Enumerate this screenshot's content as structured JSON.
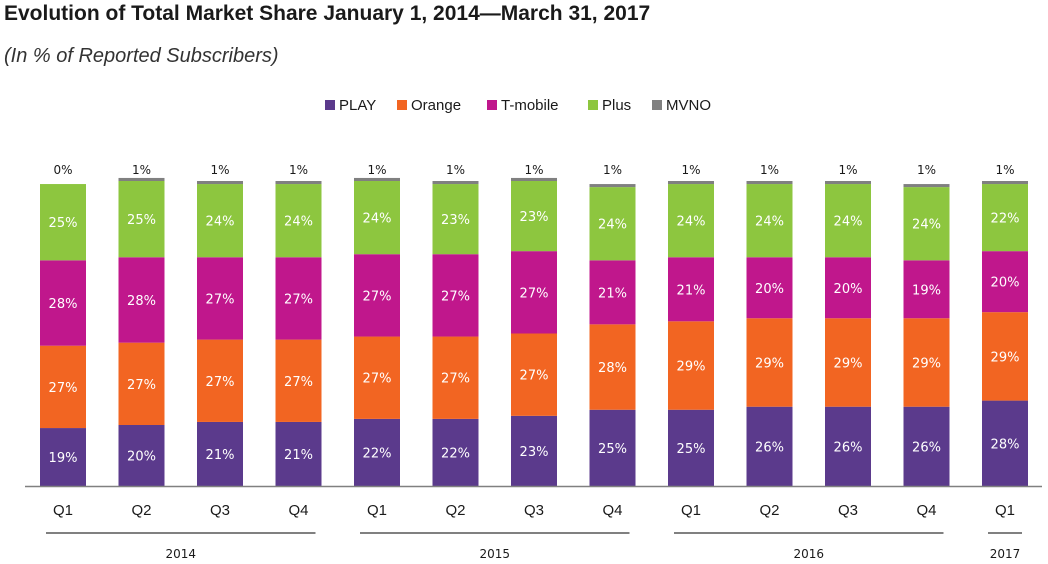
{
  "chart_data": {
    "type": "bar",
    "stacked": true,
    "title": "Evolution of Total Market Share January 1, 2014—March 31, 2017",
    "subtitle": "(In % of Reported Subscribers)",
    "legend_position": "top-center",
    "grid": false,
    "categories": [
      "Q1",
      "Q2",
      "Q3",
      "Q4",
      "Q1",
      "Q2",
      "Q3",
      "Q4",
      "Q1",
      "Q2",
      "Q3",
      "Q4",
      "Q1"
    ],
    "year_groups": [
      {
        "label": "2014",
        "start": 0,
        "end": 3
      },
      {
        "label": "2015",
        "start": 4,
        "end": 7
      },
      {
        "label": "2016",
        "start": 8,
        "end": 11
      },
      {
        "label": "2017",
        "start": 12,
        "end": 12
      }
    ],
    "series": [
      {
        "name": "PLAY",
        "color": "#5b3a8c",
        "values": [
          19,
          20,
          21,
          21,
          22,
          22,
          23,
          25,
          25,
          26,
          26,
          26,
          28
        ]
      },
      {
        "name": "Orange",
        "color": "#f26522",
        "values": [
          27,
          27,
          27,
          27,
          27,
          27,
          27,
          28,
          29,
          29,
          29,
          29,
          29
        ]
      },
      {
        "name": "T-mobile",
        "color": "#c0178c",
        "values": [
          28,
          28,
          27,
          27,
          27,
          27,
          27,
          21,
          21,
          20,
          20,
          19,
          20
        ]
      },
      {
        "name": "Plus",
        "color": "#8dc63f",
        "values": [
          25,
          25,
          24,
          24,
          24,
          23,
          23,
          24,
          24,
          24,
          24,
          24,
          22
        ]
      },
      {
        "name": "MVNO",
        "color": "#808080",
        "values": [
          0,
          1,
          1,
          1,
          1,
          1,
          1,
          1,
          1,
          1,
          1,
          1,
          1
        ]
      }
    ]
  }
}
